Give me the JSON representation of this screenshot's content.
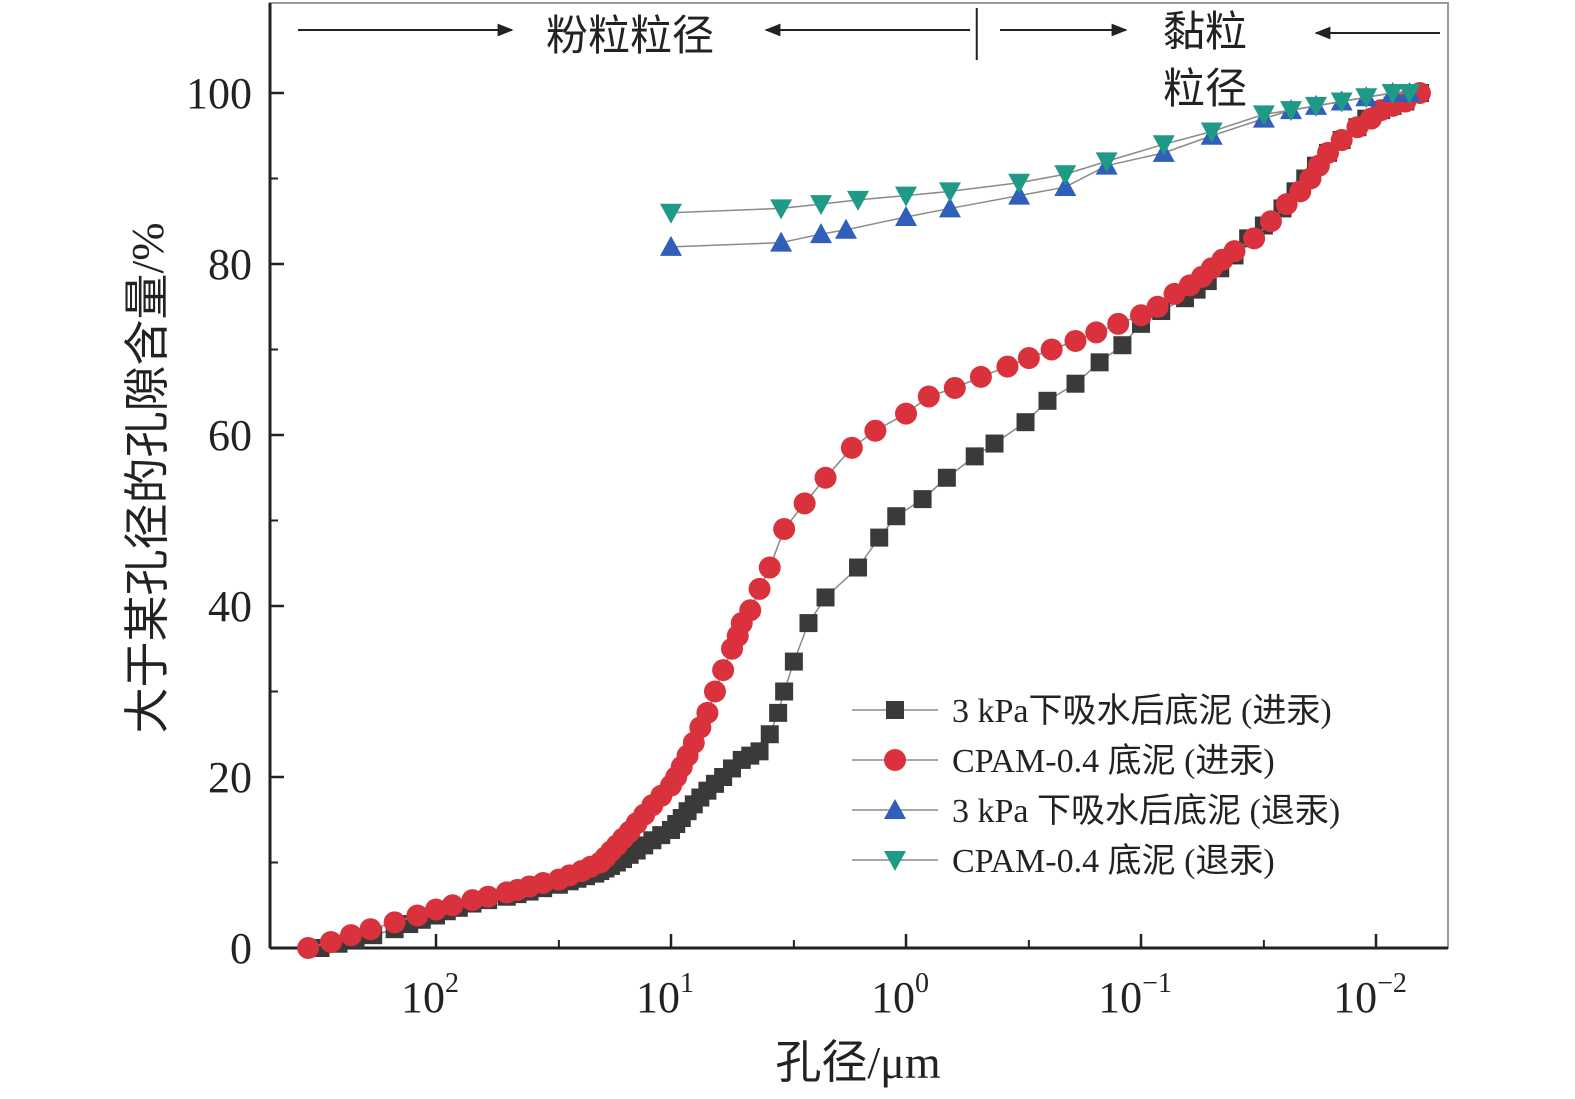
{
  "chart_data": {
    "type": "scatter",
    "title": "",
    "xlabel": "孔径/μm",
    "ylabel": "大于某孔径的孔隙含量/%",
    "x_scale": "log-reversed",
    "xlim": [
      400,
      0.006
    ],
    "ylim": [
      0,
      110
    ],
    "grid": false,
    "legend_position": "bottom-right",
    "x_ticks": [
      {
        "value": 100,
        "base": "10",
        "exp": "2"
      },
      {
        "value": 10,
        "base": "10",
        "exp": "1"
      },
      {
        "value": 1,
        "base": "10",
        "exp": "0"
      },
      {
        "value": 0.1,
        "base": "10",
        "exp": "−1"
      },
      {
        "value": 0.01,
        "base": "10",
        "exp": "−2"
      }
    ],
    "y_ticks": [
      0,
      20,
      40,
      60,
      80,
      100
    ],
    "annotations": {
      "silt_label": "粉粒粒径",
      "clay_label_line1": "黏粒",
      "clay_label_line2": "粒径",
      "boundary_pore_size": 0.5
    },
    "series": [
      {
        "name": "3 kPa下吸水后底泥 (进汞)",
        "marker": "square",
        "color": "#3a3a3a",
        "x": [
          310,
          260,
          220,
          185,
          150,
          130,
          115,
          100,
          90,
          80,
          70,
          60,
          50,
          45,
          40,
          35,
          30,
          27,
          25,
          23,
          21,
          20,
          19,
          18,
          17,
          16,
          15,
          14,
          13,
          12,
          11,
          10,
          9.5,
          9,
          8.5,
          8,
          7.5,
          7,
          6.5,
          6,
          5.5,
          5,
          4.6,
          4.2,
          3.8,
          3.5,
          3.3,
          3.0,
          2.6,
          2.2,
          1.6,
          1.3,
          1.1,
          0.85,
          0.67,
          0.51,
          0.42,
          0.31,
          0.25,
          0.19,
          0.15,
          0.12,
          0.1,
          0.082,
          0.065,
          0.058,
          0.052,
          0.046,
          0.04,
          0.035,
          0.03,
          0.025,
          0.022,
          0.02,
          0.018,
          0.016,
          0.014,
          0.012,
          0.011,
          0.0095,
          0.0085,
          0.0075,
          0.0065
        ],
        "y": [
          0,
          0.5,
          1.0,
          1.5,
          2.2,
          2.8,
          3.3,
          3.8,
          4.3,
          4.7,
          5.2,
          5.6,
          6.0,
          6.3,
          6.6,
          7.0,
          7.4,
          7.8,
          8.1,
          8.4,
          8.7,
          9.0,
          9.3,
          9.6,
          10.0,
          10.4,
          10.9,
          11.4,
          12.0,
          12.6,
          13.2,
          13.8,
          14.5,
          15.2,
          16.0,
          16.8,
          17.6,
          18.4,
          19.2,
          20.0,
          21.0,
          22.0,
          22.5,
          23.0,
          25.0,
          27.5,
          30.0,
          33.5,
          38.0,
          41.0,
          44.5,
          48.0,
          50.5,
          52.5,
          55.0,
          57.5,
          59.0,
          61.5,
          64.0,
          66.0,
          68.5,
          70.5,
          73.0,
          74.5,
          76.0,
          77.0,
          78.0,
          79.5,
          81.0,
          83.0,
          84.5,
          86.5,
          88.5,
          90.0,
          91.5,
          93.0,
          94.5,
          96.0,
          97.0,
          98.0,
          98.5,
          99.0,
          100.0
        ]
      },
      {
        "name": "CPAM-0.4 底泥 (进汞)",
        "marker": "circle",
        "color": "#d9323c",
        "x": [
          350,
          280,
          230,
          190,
          150,
          120,
          100,
          85,
          70,
          60,
          50,
          45,
          40,
          35,
          30,
          27,
          24,
          22,
          20,
          19,
          18,
          17,
          16,
          15,
          14,
          13,
          12,
          11,
          10,
          9.5,
          9,
          8.5,
          8,
          7.5,
          7,
          6.5,
          6,
          5.5,
          5.2,
          5.0,
          4.6,
          4.2,
          3.8,
          3.3,
          2.7,
          2.2,
          1.7,
          1.35,
          1.0,
          0.8,
          0.62,
          0.48,
          0.37,
          0.3,
          0.24,
          0.19,
          0.155,
          0.125,
          0.1,
          0.085,
          0.072,
          0.062,
          0.055,
          0.05,
          0.045,
          0.04,
          0.033,
          0.028,
          0.024,
          0.021,
          0.019,
          0.0175,
          0.016,
          0.014,
          0.012,
          0.0105,
          0.0095,
          0.0085,
          0.0075,
          0.0065
        ],
        "y": [
          0,
          0.7,
          1.5,
          2.2,
          3.0,
          3.8,
          4.5,
          5.0,
          5.6,
          6.0,
          6.5,
          6.8,
          7.2,
          7.6,
          8.0,
          8.5,
          9.0,
          9.5,
          10.0,
          10.6,
          11.3,
          12.0,
          12.8,
          13.6,
          14.6,
          15.6,
          16.7,
          17.8,
          19.0,
          20.0,
          21.2,
          22.5,
          24.0,
          25.8,
          27.5,
          30.0,
          32.5,
          35.0,
          36.5,
          38.0,
          39.5,
          42.0,
          44.5,
          49.0,
          52.0,
          55.0,
          58.5,
          60.5,
          62.5,
          64.5,
          65.5,
          66.8,
          68.0,
          69.0,
          70.0,
          71.0,
          72.0,
          73.0,
          74.0,
          75.0,
          76.5,
          77.5,
          78.5,
          79.5,
          80.5,
          81.5,
          83.0,
          85.0,
          87.0,
          88.5,
          90.0,
          91.5,
          93.0,
          94.5,
          96.0,
          97.0,
          98.0,
          98.5,
          99.0,
          100.0
        ]
      },
      {
        "name": "3 kPa 下吸水后底泥 (退汞)",
        "marker": "triangle-up",
        "color": "#2f5fb8",
        "x": [
          10,
          3.4,
          2.3,
          1.8,
          1.0,
          0.65,
          0.33,
          0.21,
          0.14,
          0.08,
          0.05,
          0.03,
          0.023,
          0.018,
          0.014,
          0.011,
          0.0085,
          0.0072
        ],
        "y": [
          82.0,
          82.5,
          83.5,
          84.0,
          85.5,
          86.5,
          88.0,
          89.0,
          91.5,
          93.0,
          95.0,
          97.0,
          98.0,
          98.5,
          99.0,
          99.5,
          100.0,
          100.0
        ]
      },
      {
        "name": "CPAM-0.4 底泥 (退汞)",
        "marker": "triangle-down",
        "color": "#1f9a86",
        "x": [
          10,
          3.4,
          2.3,
          1.6,
          1.0,
          0.65,
          0.33,
          0.21,
          0.14,
          0.08,
          0.05,
          0.03,
          0.023,
          0.018,
          0.014,
          0.011,
          0.0085,
          0.0072
        ],
        "y": [
          86.0,
          86.5,
          87.0,
          87.5,
          88.0,
          88.5,
          89.5,
          90.5,
          92.0,
          94.0,
          95.5,
          97.5,
          98.0,
          98.5,
          99.0,
          99.5,
          100.0,
          100.0
        ]
      }
    ]
  }
}
